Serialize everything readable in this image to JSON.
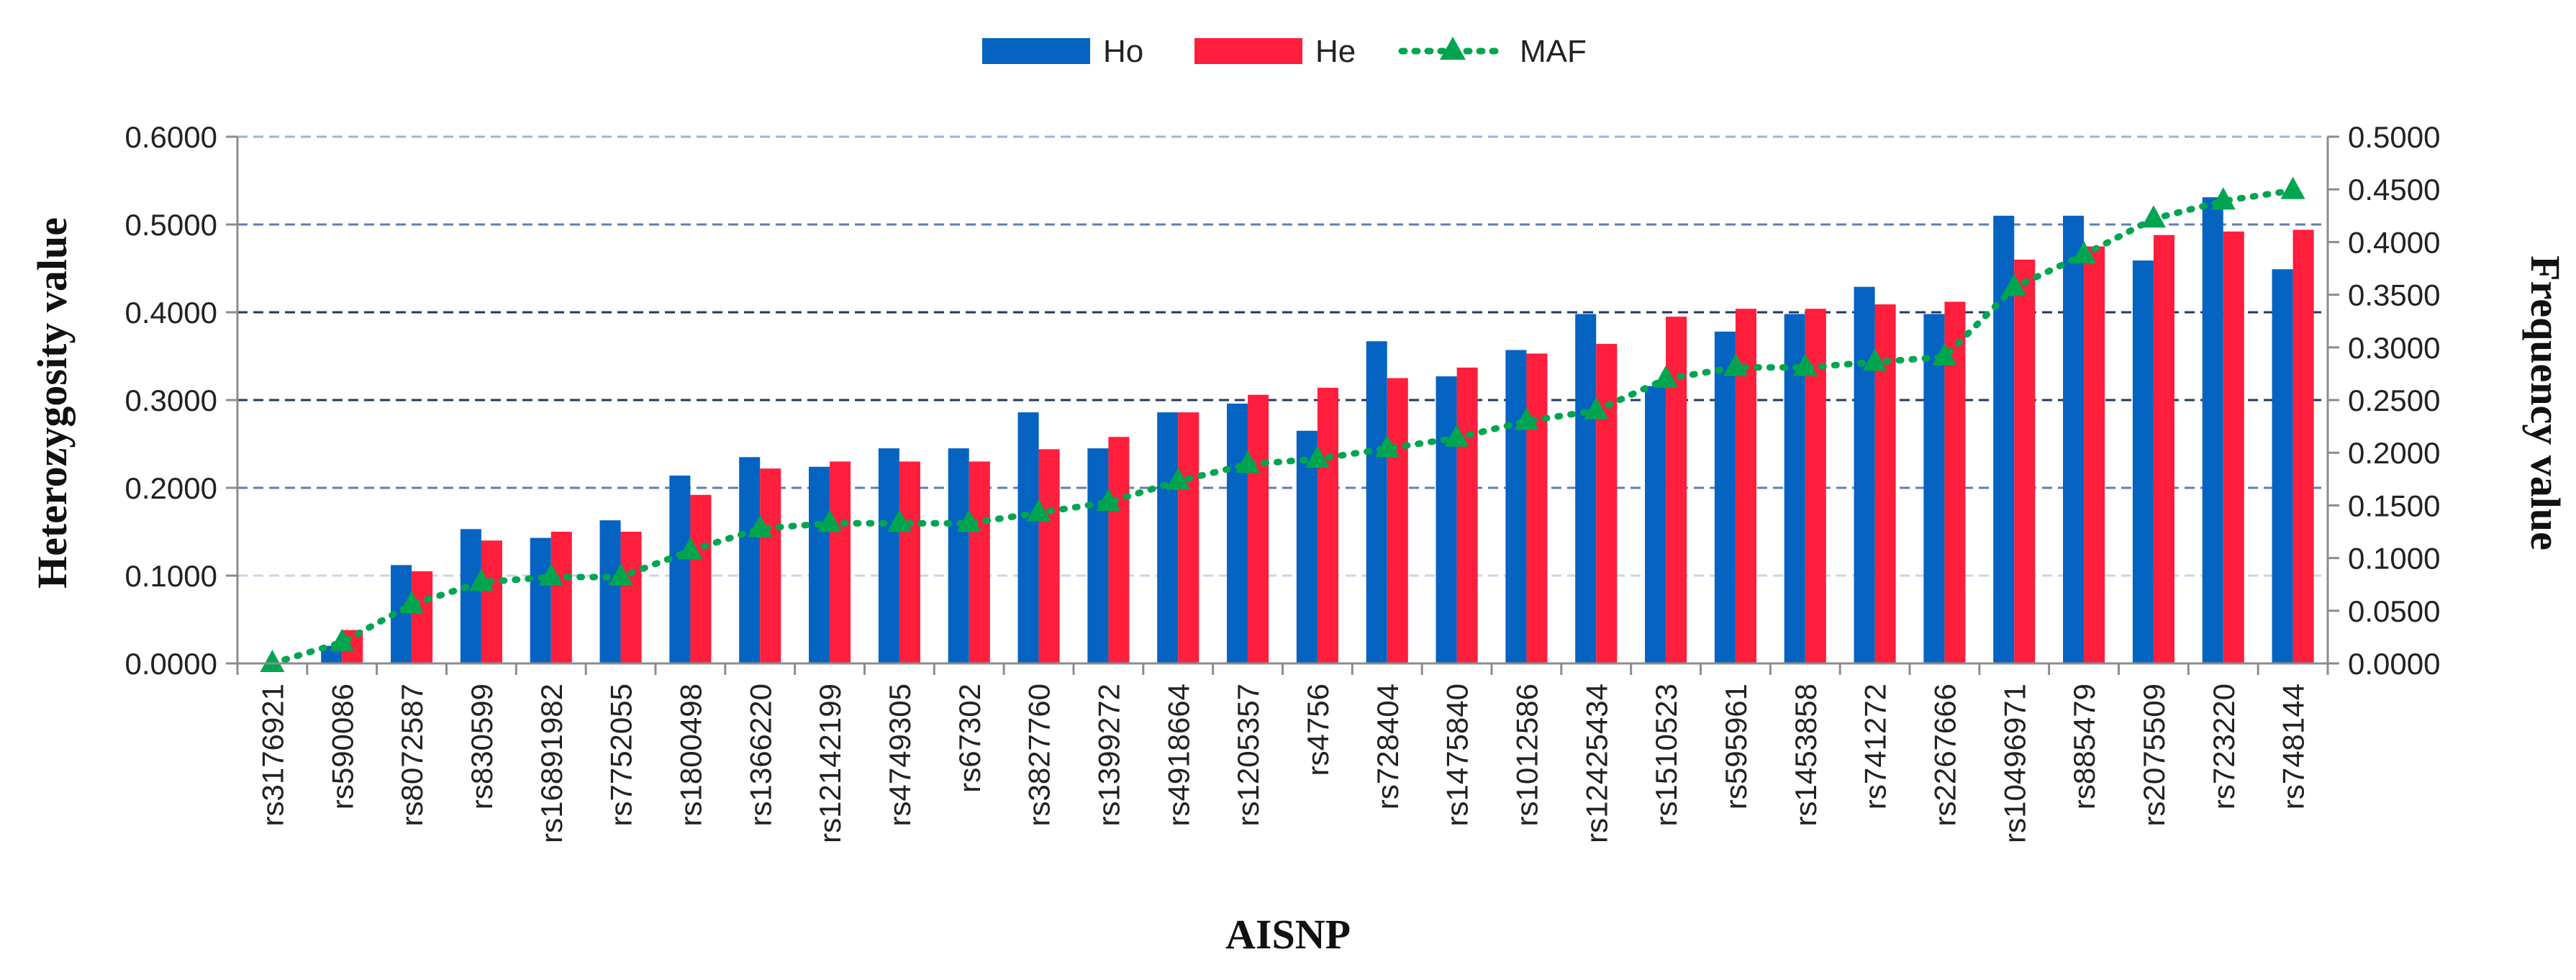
{
  "chart_data": {
    "type": "bar",
    "xlabel": "AISNP",
    "ylabel": "Heterozygosity value",
    "y2label": "Frequency value",
    "ylim": [
      0,
      0.6
    ],
    "y2lim": [
      0,
      0.5
    ],
    "yticks": [
      "0.0000",
      "0.1000",
      "0.2000",
      "0.3000",
      "0.4000",
      "0.5000",
      "0.6000"
    ],
    "y2ticks": [
      "0.0000",
      "0.0500",
      "0.1000",
      "0.1500",
      "0.2000",
      "0.2500",
      "0.3000",
      "0.3500",
      "0.4000",
      "0.4500",
      "0.5000"
    ],
    "grid": true,
    "legend_position": "top-center",
    "categories": [
      "rs3176921",
      "rs590086",
      "rs8072587",
      "rs830599",
      "rs16891982",
      "rs7752055",
      "rs1800498",
      "rs1366220",
      "rs12142199",
      "rs4749305",
      "rs67302",
      "rs3827760",
      "rs1399272",
      "rs4918664",
      "rs1205357",
      "rs4756",
      "rs728404",
      "rs1475840",
      "rs1012586",
      "rs12425434",
      "rs1510523",
      "rs595961",
      "rs1453858",
      "rs741272",
      "rs2267666",
      "rs10496971",
      "rs885479",
      "rs2075509",
      "rs723220",
      "rs748144"
    ],
    "series": [
      {
        "name": "Ho",
        "type": "bar",
        "axis": "left",
        "color": "#0563C1",
        "values": [
          0.0,
          0.02,
          0.112,
          0.153,
          0.143,
          0.163,
          0.214,
          0.235,
          0.224,
          0.245,
          0.245,
          0.286,
          0.245,
          0.286,
          0.296,
          0.265,
          0.367,
          0.327,
          0.357,
          0.398,
          0.316,
          0.378,
          0.398,
          0.429,
          0.398,
          0.51,
          0.51,
          0.459,
          0.531,
          0.449
        ]
      },
      {
        "name": "He",
        "type": "bar",
        "axis": "left",
        "color": "#FF1E3C",
        "values": [
          0.0,
          0.038,
          0.105,
          0.14,
          0.15,
          0.15,
          0.192,
          0.222,
          0.23,
          0.23,
          0.23,
          0.244,
          0.258,
          0.286,
          0.306,
          0.314,
          0.325,
          0.337,
          0.353,
          0.364,
          0.395,
          0.404,
          0.404,
          0.409,
          0.412,
          0.46,
          0.475,
          0.488,
          0.492,
          0.494
        ]
      },
      {
        "name": "MAF",
        "type": "line",
        "axis": "right",
        "color": "#00A550",
        "values": [
          0.0,
          0.02,
          0.056,
          0.077,
          0.082,
          0.082,
          0.107,
          0.128,
          0.133,
          0.133,
          0.133,
          0.143,
          0.153,
          0.173,
          0.189,
          0.194,
          0.204,
          0.214,
          0.23,
          0.24,
          0.27,
          0.281,
          0.281,
          0.286,
          0.291,
          0.357,
          0.388,
          0.422,
          0.439,
          0.449
        ]
      }
    ]
  }
}
